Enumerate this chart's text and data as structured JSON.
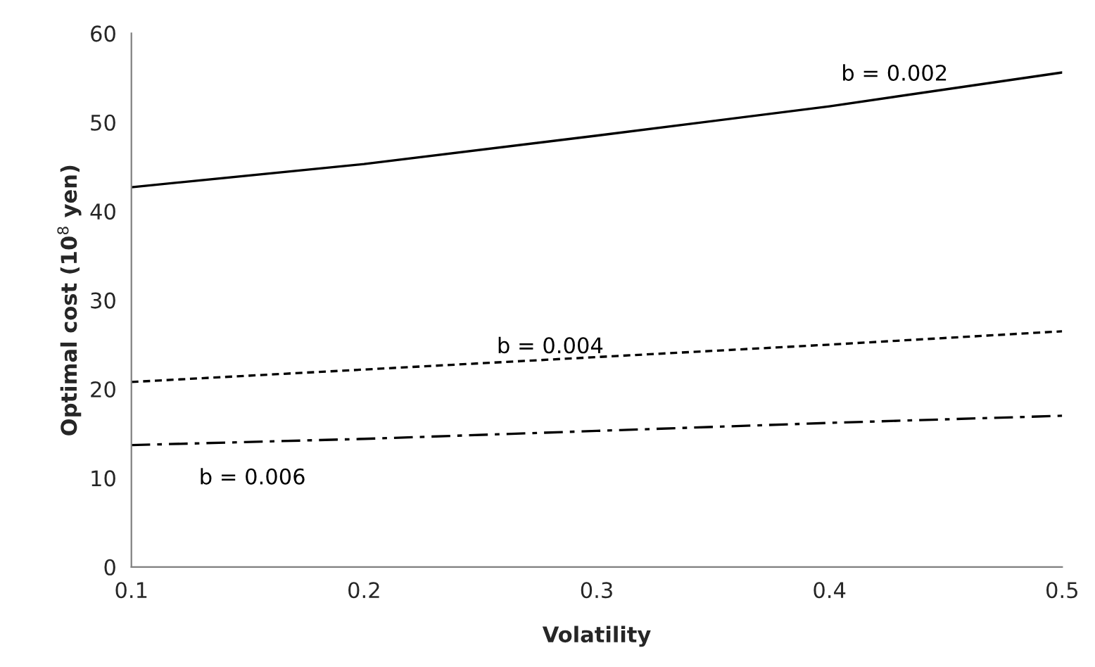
{
  "chart_data": {
    "type": "line",
    "xlabel": "Volatility",
    "ylabel": "Optimal cost (10$^{8}$ yen)",
    "x": [
      0.1,
      0.2,
      0.3,
      0.4,
      0.5
    ],
    "series": [
      {
        "name": "b = 0.002",
        "color": "#000000",
        "line_style": "solid",
        "values": [
          42.7,
          45.3,
          48.5,
          51.8,
          55.6
        ]
      },
      {
        "name": "b = 0.004",
        "color": "#000000",
        "line_style": "dotted",
        "values": [
          20.8,
          22.2,
          23.6,
          25.0,
          26.5
        ]
      },
      {
        "name": "b = 0.006",
        "color": "#000000",
        "line_style": "dashed",
        "values": [
          13.7,
          14.4,
          15.3,
          16.2,
          17.0
        ]
      }
    ],
    "xlim": [
      0.1,
      0.5
    ],
    "xticks": [
      0.1,
      0.2,
      0.3,
      0.4,
      0.5
    ],
    "ylim": [
      0,
      60
    ],
    "yticks": [
      0,
      10,
      20,
      30,
      40,
      50,
      60
    ],
    "grid": false,
    "legend": false,
    "marker": "none"
  }
}
